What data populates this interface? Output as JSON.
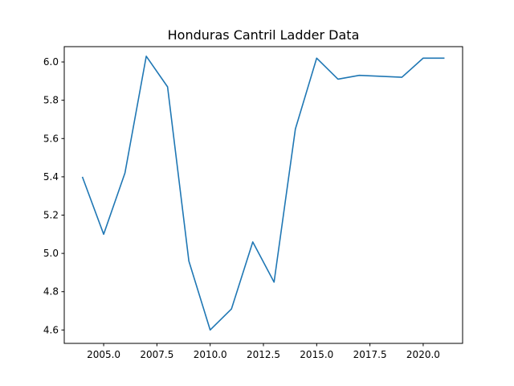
{
  "chart_data": {
    "type": "line",
    "title": "Honduras Cantril Ladder Data",
    "xlabel": "",
    "ylabel": "",
    "xlim": [
      2003.15,
      2021.85
    ],
    "ylim": [
      4.53,
      6.08
    ],
    "xticks": [
      2005.0,
      2007.5,
      2010.0,
      2012.5,
      2015.0,
      2017.5,
      2020.0
    ],
    "xtick_labels": [
      "2005.0",
      "2007.5",
      "2010.0",
      "2012.5",
      "2015.0",
      "2017.5",
      "2020.0"
    ],
    "yticks": [
      4.6,
      4.8,
      5.0,
      5.2,
      5.4,
      5.6,
      5.8,
      6.0
    ],
    "ytick_labels": [
      "4.6",
      "4.8",
      "5.0",
      "5.2",
      "5.4",
      "5.6",
      "5.8",
      "6.0"
    ],
    "grid": false,
    "series": [
      {
        "color": "#1f77b4",
        "x": [
          2004,
          2005,
          2006,
          2007,
          2008,
          2009,
          2010,
          2011,
          2012,
          2013,
          2014,
          2015,
          2016,
          2017,
          2019,
          2020,
          2021
        ],
        "y": [
          5.4,
          5.1,
          5.42,
          6.03,
          5.87,
          4.96,
          4.6,
          4.71,
          5.06,
          4.85,
          5.65,
          6.02,
          5.91,
          5.93,
          5.92,
          6.02,
          6.02
        ]
      }
    ]
  }
}
